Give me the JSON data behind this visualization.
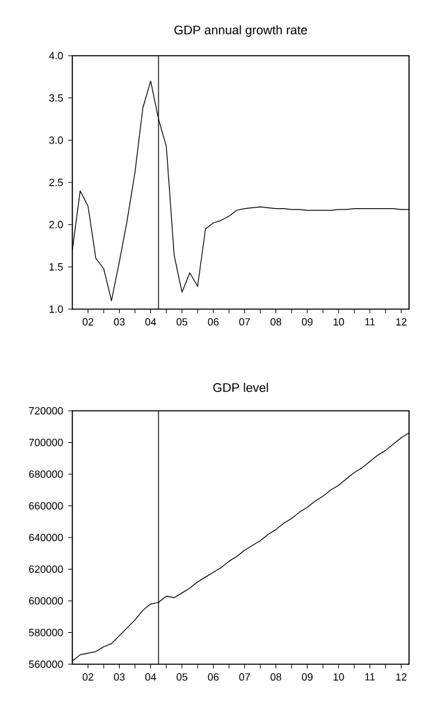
{
  "chart_data": [
    {
      "type": "line",
      "title": "GDP annual growth rate",
      "x": [
        "2002-01",
        "2002-04",
        "2002-07",
        "2002-10",
        "2003-01",
        "2003-04",
        "2003-07",
        "2003-10",
        "2004-01",
        "2004-04",
        "2004-07",
        "2004-10",
        "2005-01",
        "2005-04",
        "2005-07",
        "2005-10",
        "2006-01",
        "2006-04",
        "2006-07",
        "2006-10",
        "2007-01",
        "2007-04",
        "2007-07",
        "2007-10",
        "2008-01",
        "2008-04",
        "2008-07",
        "2008-10",
        "2009-01",
        "2009-04",
        "2009-07",
        "2009-10",
        "2010-01",
        "2010-04",
        "2010-07",
        "2010-10",
        "2011-01",
        "2011-04",
        "2011-07",
        "2011-10",
        "2012-01",
        "2012-04",
        "2012-07",
        "2012-10"
      ],
      "series": [
        {
          "color": "#000000",
          "values": [
            1.7,
            2.4,
            2.22,
            1.6,
            1.48,
            1.1,
            1.56,
            2.05,
            2.62,
            3.38,
            3.7,
            3.25,
            2.93,
            1.64,
            1.2,
            1.43,
            1.27,
            1.95,
            2.02,
            2.05,
            2.1,
            2.17,
            2.19,
            2.2,
            2.21,
            2.2,
            2.19,
            2.19,
            2.18,
            2.18,
            2.17,
            2.17,
            2.17,
            2.17,
            2.18,
            2.18,
            2.19,
            2.19,
            2.19,
            2.19,
            2.19,
            2.19,
            2.18,
            2.18
          ]
        }
      ],
      "xlim": [
        "2002-01",
        "2012-10"
      ],
      "xticks": [
        {
          "value": "2002-07",
          "label": "02"
        },
        {
          "value": "2003-07",
          "label": "03"
        },
        {
          "value": "2004-07",
          "label": "04"
        },
        {
          "value": "2005-07",
          "label": "05"
        },
        {
          "value": "2006-07",
          "label": "06"
        },
        {
          "value": "2007-07",
          "label": "07"
        },
        {
          "value": "2008-07",
          "label": "08"
        },
        {
          "value": "2009-07",
          "label": "09"
        },
        {
          "value": "2010-07",
          "label": "10"
        },
        {
          "value": "2011-07",
          "label": "11"
        },
        {
          "value": "2012-07",
          "label": "12"
        },
        {
          "value": "2003-01",
          "label": null
        },
        {
          "value": "2004-01",
          "label": null
        },
        {
          "value": "2005-01",
          "label": null
        },
        {
          "value": "2006-01",
          "label": null
        },
        {
          "value": "2007-01",
          "label": null
        },
        {
          "value": "2008-01",
          "label": null
        },
        {
          "value": "2009-01",
          "label": null
        },
        {
          "value": "2010-01",
          "label": null
        },
        {
          "value": "2011-01",
          "label": null
        },
        {
          "value": "2012-01",
          "label": null
        }
      ],
      "ylim": [
        1,
        4
      ],
      "yticks": [
        {
          "value": 1,
          "label": "1.0"
        },
        {
          "value": 1.5,
          "label": "1.5"
        },
        {
          "value": 2,
          "label": "2.0"
        },
        {
          "value": 2.5,
          "label": "2.5"
        },
        {
          "value": 3,
          "label": "3.0"
        },
        {
          "value": 3.5,
          "label": "3.5"
        },
        {
          "value": 4,
          "label": "4.0"
        }
      ],
      "ref_lines": [
        {
          "axis": "x",
          "value": "2004-10",
          "color": "#000000"
        }
      ],
      "marker": "none",
      "line_style": "solid",
      "grid": false
    },
    {
      "type": "line",
      "title": "GDP level",
      "x": [
        "2002-01",
        "2002-04",
        "2002-07",
        "2002-10",
        "2003-01",
        "2003-04",
        "2003-07",
        "2003-10",
        "2004-01",
        "2004-04",
        "2004-07",
        "2004-10",
        "2005-01",
        "2005-04",
        "2005-07",
        "2005-10",
        "2006-01",
        "2006-04",
        "2006-07",
        "2006-10",
        "2007-01",
        "2007-04",
        "2007-07",
        "2007-10",
        "2008-01",
        "2008-04",
        "2008-07",
        "2008-10",
        "2009-01",
        "2009-04",
        "2009-07",
        "2009-10",
        "2010-01",
        "2010-04",
        "2010-07",
        "2010-10",
        "2011-01",
        "2011-04",
        "2011-07",
        "2011-10",
        "2012-01",
        "2012-04",
        "2012-07",
        "2012-10"
      ],
      "series": [
        {
          "color": "#000000",
          "values": [
            562000,
            566000,
            567000,
            568000,
            571000,
            573000,
            578000,
            583000,
            588000,
            594000,
            598000,
            599000,
            603000,
            602000,
            605000,
            608000,
            612000,
            615000,
            618000,
            621000,
            625000,
            628000,
            632000,
            635000,
            638000,
            642000,
            645000,
            649000,
            652000,
            656000,
            659000,
            663000,
            666000,
            670000,
            673000,
            677000,
            681000,
            684000,
            688000,
            692000,
            695000,
            699000,
            703000,
            706000
          ]
        }
      ],
      "xlim": [
        "2002-01",
        "2012-10"
      ],
      "xticks": [
        {
          "value": "2002-07",
          "label": "02"
        },
        {
          "value": "2003-07",
          "label": "03"
        },
        {
          "value": "2004-07",
          "label": "04"
        },
        {
          "value": "2005-07",
          "label": "05"
        },
        {
          "value": "2006-07",
          "label": "06"
        },
        {
          "value": "2007-07",
          "label": "07"
        },
        {
          "value": "2008-07",
          "label": "08"
        },
        {
          "value": "2009-07",
          "label": "09"
        },
        {
          "value": "2010-07",
          "label": "10"
        },
        {
          "value": "2011-07",
          "label": "11"
        },
        {
          "value": "2012-07",
          "label": "12"
        },
        {
          "value": "2003-01",
          "label": null
        },
        {
          "value": "2004-01",
          "label": null
        },
        {
          "value": "2005-01",
          "label": null
        },
        {
          "value": "2006-01",
          "label": null
        },
        {
          "value": "2007-01",
          "label": null
        },
        {
          "value": "2008-01",
          "label": null
        },
        {
          "value": "2009-01",
          "label": null
        },
        {
          "value": "2010-01",
          "label": null
        },
        {
          "value": "2011-01",
          "label": null
        },
        {
          "value": "2012-01",
          "label": null
        }
      ],
      "ylim": [
        560000,
        720000
      ],
      "yticks": [
        560000,
        580000,
        600000,
        620000,
        640000,
        660000,
        680000,
        700000,
        720000
      ],
      "ref_lines": [
        {
          "axis": "x",
          "value": "2004-10",
          "color": "#000000"
        }
      ],
      "marker": "none",
      "line_style": "solid",
      "grid": false
    }
  ]
}
